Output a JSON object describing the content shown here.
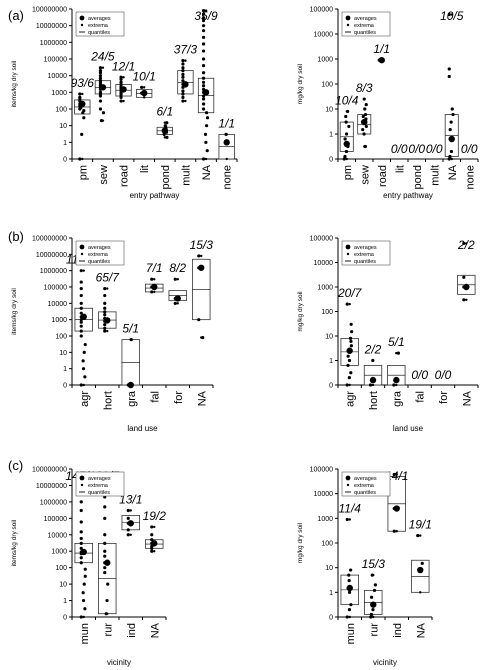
{
  "legend": {
    "averages": "averages",
    "extrema": "extrema",
    "quantiles": "quantiles"
  },
  "chart_data": [
    {
      "panel": "(a)",
      "type": "box",
      "xlabel": "entry pathway",
      "ylabel": "items/kg dry soil",
      "yscale": "log",
      "ytick_labels": [
        "0",
        "1",
        "10",
        "100",
        "1000",
        "10000",
        "100000",
        "1000000",
        "10000000",
        "100000000"
      ],
      "categories": [
        "pm",
        "sew",
        "road",
        "lit",
        "pond",
        "mult",
        "NA",
        "none"
      ],
      "annotations": [
        "93/6",
        "24/5",
        "12/1",
        "10/1",
        "6/1",
        "37/3",
        "35/9",
        "1/1"
      ],
      "groups": [
        {
          "box": [
            50,
            350
          ],
          "mean": 200,
          "min": 0,
          "max": 800,
          "points": [
            0,
            3,
            30,
            60,
            80,
            100,
            120,
            150,
            200,
            300,
            400,
            500,
            800
          ]
        },
        {
          "box": [
            800,
            5000
          ],
          "mean": 2000,
          "min": 20,
          "max": 30000,
          "points": [
            20,
            60,
            100,
            300,
            600,
            800,
            1000,
            1500,
            2000,
            2500,
            3000,
            4000,
            5000,
            7000,
            10000,
            15000,
            20000,
            30000
          ]
        },
        {
          "box": [
            600,
            3000
          ],
          "mean": 1500,
          "min": 300,
          "max": 8000,
          "points": [
            300,
            500,
            700,
            900,
            1200,
            1500,
            1800,
            2200,
            3000,
            4000,
            6000,
            8000
          ]
        },
        {
          "box": [
            500,
            1500
          ],
          "mean": 900,
          "min": 500,
          "max": 2000,
          "points": [
            900,
            2000
          ]
        },
        {
          "box": [
            3,
            8
          ],
          "mean": 5,
          "min": 2,
          "max": 15,
          "points": [
            2,
            3,
            4,
            5,
            6,
            8,
            10,
            15
          ]
        },
        {
          "box": [
            800,
            20000
          ],
          "mean": 3000,
          "min": 300,
          "max": 80000,
          "points": [
            300,
            500,
            800,
            1200,
            2000,
            3000,
            5000,
            8000,
            12000,
            20000,
            30000,
            50000,
            80000
          ]
        },
        {
          "box": [
            60,
            7000
          ],
          "mean": 1000,
          "min": 0,
          "max": 80000000,
          "points": [
            0,
            0.5,
            1,
            3,
            10,
            30,
            60,
            100,
            200,
            400,
            600,
            1000,
            1500,
            2500,
            4000,
            7000,
            15000,
            40000,
            100000,
            300000,
            800000,
            2000000,
            5000000,
            10000000,
            20000000,
            30000000,
            50000000,
            80000000
          ]
        },
        {
          "box": [
            0,
            3
          ],
          "mean": 1,
          "min": 0,
          "max": 3,
          "points": [
            1,
            3
          ]
        }
      ]
    },
    {
      "panel": "(a)",
      "type": "box",
      "xlabel": "entry pathway",
      "ylabel": "mg/kg dry soil",
      "yscale": "log",
      "ytick_labels": [
        "0",
        "1",
        "10",
        "100",
        "1000",
        "10000",
        "100000"
      ],
      "categories": [
        "pm",
        "sew",
        "road",
        "lit",
        "pond",
        "mult",
        "NA",
        "none"
      ],
      "annotations": [
        "10/4",
        "8/3",
        "1/1",
        "0/0",
        "0/0",
        "0/0",
        "10/5",
        "0/0"
      ],
      "groups": [
        {
          "box": [
            0.3,
            3
          ],
          "mean": 0.6,
          "min": 0,
          "max": 8,
          "points": [
            0,
            0.1,
            0.3,
            0.5,
            0.8,
            1,
            2,
            3,
            5,
            8
          ]
        },
        {
          "box": [
            1,
            6
          ],
          "mean": 3,
          "min": 0.5,
          "max": 25,
          "points": [
            0.5,
            1,
            1.5,
            2,
            3,
            4,
            5,
            6,
            10,
            15,
            25
          ]
        },
        {
          "box": null,
          "mean": 900,
          "min": 900,
          "max": 900,
          "points": [
            900
          ]
        },
        null,
        null,
        null,
        {
          "box": [
            0.1,
            6
          ],
          "mean": 0.8,
          "min": 0,
          "max": 60000,
          "points": [
            0,
            0.1,
            0.3,
            0.8,
            1.5,
            3,
            6,
            10,
            200,
            400,
            60000
          ]
        },
        null
      ]
    },
    {
      "panel": "(b)",
      "type": "box",
      "xlabel": "land use",
      "ylabel": "items/kg dry soil",
      "yscale": "log",
      "ytick_labels": [
        "0",
        "1",
        "10",
        "100",
        "1000",
        "10000",
        "100000",
        "1000000",
        "10000000",
        "100000000"
      ],
      "categories": [
        "agr",
        "hort",
        "gra",
        "fal",
        "for",
        "NA"
      ],
      "annotations": [
        "118/16",
        "65/7",
        "5/1",
        "7/1",
        "8/2",
        "15/3"
      ],
      "groups": [
        {
          "box": [
            200,
            5000
          ],
          "mean": 1500,
          "min": 0,
          "max": 1000000,
          "points": [
            0,
            0.5,
            1,
            3,
            10,
            30,
            100,
            200,
            400,
            700,
            1000,
            1500,
            2500,
            5000,
            10000,
            30000,
            80000,
            200000,
            1000000
          ]
        },
        {
          "box": [
            300,
            3000
          ],
          "mean": 900,
          "min": 200,
          "max": 80000,
          "points": [
            200,
            300,
            500,
            800,
            1200,
            2000,
            3000,
            5000,
            10000,
            30000,
            80000
          ]
        },
        {
          "box": [
            0,
            60
          ],
          "mean": 0,
          "min": 0,
          "max": 60,
          "points": [
            0,
            60
          ]
        },
        {
          "box": [
            50000,
            150000
          ],
          "mean": 100000,
          "min": 50000,
          "max": 300000,
          "points": [
            50000,
            100000,
            300000
          ]
        },
        {
          "box": [
            15000,
            60000
          ],
          "mean": 20000,
          "min": 10000,
          "max": 300000,
          "points": [
            10000,
            20000,
            300000
          ]
        },
        {
          "box": [
            1000,
            5000000
          ],
          "mean": 1500000,
          "min": 80,
          "max": 8000000,
          "points": [
            80,
            1000,
            1500000,
            8000000
          ]
        }
      ]
    },
    {
      "panel": "(b)",
      "type": "box",
      "xlabel": "land use",
      "ylabel": "mg/kg dry soil",
      "yscale": "log",
      "ytick_labels": [
        "0",
        "1",
        "10",
        "100",
        "1000",
        "10000",
        "100000"
      ],
      "categories": [
        "agr",
        "hort",
        "gra",
        "fal",
        "for",
        "NA"
      ],
      "annotations": [
        "20/7",
        "2/2",
        "5/1",
        "0/0",
        "0/0",
        "2/2"
      ],
      "groups": [
        {
          "box": [
            0.8,
            8
          ],
          "mean": 2.5,
          "min": 0,
          "max": 200,
          "points": [
            0,
            0.3,
            0.5,
            0.8,
            1,
            1.5,
            2.5,
            4,
            6,
            8,
            15,
            30,
            200
          ]
        },
        {
          "box": [
            0,
            0.8
          ],
          "mean": 0.2,
          "min": 0,
          "max": 1,
          "points": [
            0,
            0.2,
            1
          ]
        },
        {
          "box": [
            0,
            0.8
          ],
          "mean": 0.2,
          "min": 0,
          "max": 2,
          "points": [
            0,
            0.2,
            2
          ]
        },
        null,
        null,
        {
          "box": [
            500,
            3000
          ],
          "mean": 1000,
          "min": 300,
          "max": 60000,
          "points": [
            300,
            1000,
            2500,
            60000
          ]
        }
      ]
    },
    {
      "panel": "(c)",
      "type": "box",
      "xlabel": "vicinity",
      "ylabel": "items/kg dry soil",
      "yscale": "log",
      "ytick_labels": [
        "0",
        "1",
        "10",
        "100",
        "1000",
        "10000",
        "100000",
        "1000000",
        "10000000",
        "100000000"
      ],
      "categories": [
        "mun",
        "rur",
        "ind",
        "NA"
      ],
      "annotations": [
        "147/13",
        "39/7",
        "13/1",
        "19/2"
      ],
      "groups": [
        {
          "box": [
            200,
            3000
          ],
          "mean": 900,
          "min": 0,
          "max": 30000000,
          "points": [
            0,
            0.5,
            1,
            3,
            10,
            30,
            80,
            200,
            400,
            700,
            900,
            1500,
            3000,
            6000,
            15000,
            60000,
            300000,
            1000000,
            5000000,
            15000000,
            30000000
          ]
        },
        {
          "box": [
            0.2,
            3000
          ],
          "mean": 200,
          "min": 0.2,
          "max": 30000000,
          "points": [
            0.2,
            1,
            10,
            50,
            100,
            200,
            500,
            1000,
            3000,
            10000,
            100000,
            500000,
            2000000,
            8000000,
            30000000
          ]
        },
        {
          "box": [
            20000,
            150000
          ],
          "mean": 50000,
          "min": 10000,
          "max": 300000,
          "points": [
            10000,
            20000,
            50000,
            100000,
            300000
          ]
        },
        {
          "box": [
            1500,
            5000
          ],
          "mean": 3000,
          "min": 1000,
          "max": 30000,
          "points": [
            1000,
            1500,
            2000,
            3000,
            5000,
            10000,
            30000
          ]
        }
      ]
    },
    {
      "panel": "(c)",
      "type": "box",
      "xlabel": "vicinity",
      "ylabel": "mg/kg dry soil",
      "yscale": "log",
      "ytick_labels": [
        "0",
        "1",
        "10",
        "100",
        "1000",
        "10000",
        "100000"
      ],
      "categories": [
        "mun",
        "rur",
        "ind",
        "NA"
      ],
      "annotations": [
        "11/4",
        "15/3",
        "14/1",
        "19/1"
      ],
      "groups": [
        {
          "box": [
            0.5,
            5
          ],
          "mean": 1.5,
          "min": 0,
          "max": 900,
          "points": [
            0,
            0.3,
            0.5,
            1,
            1.5,
            3,
            5,
            8,
            900
          ]
        },
        {
          "box": [
            0.1,
            1.2
          ],
          "mean": 0.5,
          "min": 0,
          "max": 5,
          "points": [
            0,
            0.1,
            0.3,
            0.5,
            0.8,
            1.2,
            2,
            5
          ]
        },
        {
          "box": [
            300,
            50000
          ],
          "mean": 2500,
          "min": 300,
          "max": 60000,
          "points": [
            300,
            2500,
            60000
          ]
        },
        {
          "box": [
            1,
            20
          ],
          "mean": 8,
          "min": 1,
          "max": 200,
          "points": [
            8,
            15,
            200
          ]
        }
      ]
    }
  ]
}
